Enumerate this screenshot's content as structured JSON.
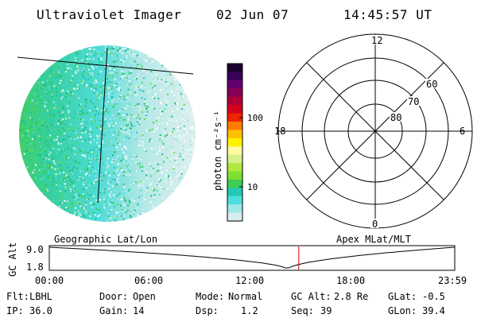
{
  "header": {
    "title": "Ultraviolet Imager",
    "date": "02 Jun 07",
    "time": "14:45:57 UT"
  },
  "colorbar": {
    "label": "photon cm⁻²s⁻¹",
    "ticks": [
      "100",
      "10"
    ],
    "colors": [
      "#1b0030",
      "#3a0058",
      "#62006f",
      "#870055",
      "#b00035",
      "#d4001e",
      "#ef2400",
      "#ff7a00",
      "#ffc000",
      "#fff200",
      "#fffaa0",
      "#d8f08a",
      "#b0e840",
      "#7fdf30",
      "#3ecd55",
      "#25c8b2",
      "#4fdede",
      "#9fe8e8",
      "#d8eeee"
    ]
  },
  "polar_plot": {
    "labels": {
      "top": "12",
      "bottom": "0",
      "left": "18",
      "right": "6"
    },
    "lat_labels": [
      "60",
      "70",
      "80"
    ]
  },
  "timeline": {
    "ylabel": "GC Alt",
    "yticks": [
      "9.0",
      "1.8"
    ],
    "left_caption": "Geographic Lat/Lon",
    "right_caption": "Apex MLat/MLT",
    "xticks": [
      "00:00",
      "06:00",
      "12:00",
      "18:00",
      "23:59"
    ],
    "marker_time_hours": 14.766,
    "marker_color": "#cc0000"
  },
  "info": {
    "flt_label": "Flt:",
    "flt_value": "LBHL",
    "door_label": "Door:",
    "door_value": "Open",
    "mode_label": "Mode:",
    "mode_value": "Normal",
    "gcalt_label": "GC Alt:",
    "gcalt_value": "2.8 Re",
    "glat_label": "GLat:",
    "glat_value": "-0.5",
    "ip_label": "IP:",
    "ip_value": "36.0",
    "gain_label": "Gain:",
    "gain_value": "14",
    "dsp_label": "Dsp:",
    "dsp_value": "1.2",
    "seq_label": "Seq:",
    "seq_value": "39",
    "glon_label": "GLon:",
    "glon_value": "39.4"
  }
}
